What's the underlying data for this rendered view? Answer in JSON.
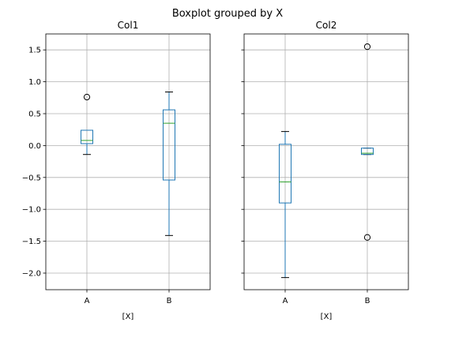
{
  "chart_data": {
    "type": "boxplot",
    "title": "Boxplot grouped by X",
    "ylim": [
      -2.26,
      1.75
    ],
    "yticks": [
      1.5,
      1.0,
      0.5,
      0.0,
      -0.5,
      -1.0,
      -1.5,
      -2.0
    ],
    "ytick_labels": [
      "1.5",
      "1.0",
      "0.5",
      "0.0",
      "−0.5",
      "−1.0",
      "−1.5",
      "−2.0"
    ],
    "grid": true,
    "sharey": true,
    "colors": {
      "box": "#1f77b4",
      "median": "#2ca02c",
      "whisker": "#1f77b4",
      "cap": "#000000",
      "grid": "#b0b0b0",
      "flier": "#000000"
    },
    "panels": [
      {
        "title": "Col1",
        "xlabel": "[X]",
        "categories": [
          "A",
          "B"
        ],
        "boxes": [
          {
            "category": "A",
            "whislo": -0.14,
            "q1": 0.03,
            "med": 0.08,
            "q3": 0.24,
            "whishi": 0.24,
            "fliers": [
              0.76
            ]
          },
          {
            "category": "B",
            "whislo": -1.41,
            "q1": -0.54,
            "med": 0.35,
            "q3": 0.56,
            "whishi": 0.84,
            "fliers": []
          }
        ]
      },
      {
        "title": "Col2",
        "xlabel": "[X]",
        "categories": [
          "A",
          "B"
        ],
        "boxes": [
          {
            "category": "A",
            "whislo": -2.07,
            "q1": -0.9,
            "med": -0.57,
            "q3": 0.02,
            "whishi": 0.22,
            "fliers": []
          },
          {
            "category": "B",
            "whislo": -0.14,
            "q1": -0.14,
            "med": -0.12,
            "q3": -0.04,
            "whishi": -0.04,
            "fliers": [
              1.55,
              -1.44
            ]
          }
        ]
      }
    ]
  }
}
